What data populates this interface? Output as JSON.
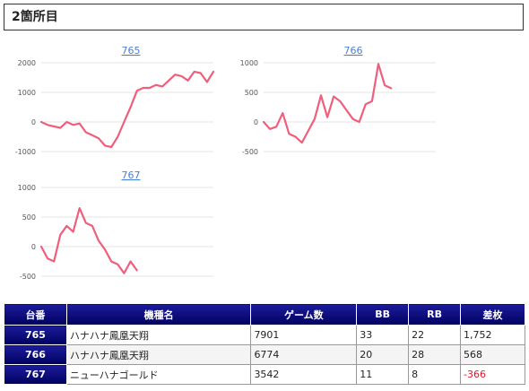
{
  "section_title": "2箇所目",
  "chart_data": [
    {
      "type": "line",
      "title": "765",
      "color": "#ef5f7c",
      "yticks": [
        2000,
        1000,
        0,
        -1000
      ],
      "ylim": [
        -1000,
        2000
      ],
      "values": [
        0,
        -100,
        -150,
        -200,
        0,
        -100,
        -50,
        -350,
        -450,
        -550,
        -800,
        -850,
        -500,
        0,
        500,
        1050,
        1150,
        1150,
        1250,
        1200,
        1400,
        1600,
        1550,
        1400,
        1700,
        1650,
        1350,
        1700
      ]
    },
    {
      "type": "line",
      "title": "766",
      "color": "#ef5f7c",
      "yticks": [
        1000,
        500,
        0,
        -500
      ],
      "ylim": [
        -500,
        1000
      ],
      "values": [
        0,
        -120,
        -80,
        150,
        -200,
        -250,
        -350,
        -150,
        50,
        450,
        80,
        430,
        350,
        200,
        50,
        0,
        300,
        350,
        980,
        620,
        570
      ]
    },
    {
      "type": "line",
      "title": "767",
      "color": "#ef5f7c",
      "yticks": [
        1000,
        500,
        0,
        -500
      ],
      "ylim": [
        -500,
        1000
      ],
      "values": [
        0,
        -200,
        -250,
        200,
        350,
        250,
        650,
        400,
        350,
        100,
        -50,
        -250,
        -300,
        -450,
        -250,
        -400
      ]
    }
  ],
  "table": {
    "headers": [
      "台番",
      "機種名",
      "ゲーム数",
      "BB",
      "RB",
      "差枚"
    ],
    "rows": [
      {
        "num": "765",
        "name": "ハナハナ鳳凰天翔",
        "games": "7901",
        "bb": "33",
        "rb": "22",
        "diff": "1,752",
        "negative": false
      },
      {
        "num": "766",
        "name": "ハナハナ鳳凰天翔",
        "games": "6774",
        "bb": "20",
        "rb": "28",
        "diff": "568",
        "negative": false
      },
      {
        "num": "767",
        "name": "ニューハナゴールド",
        "games": "3542",
        "bb": "11",
        "rb": "8",
        "diff": "-366",
        "negative": true
      }
    ]
  }
}
